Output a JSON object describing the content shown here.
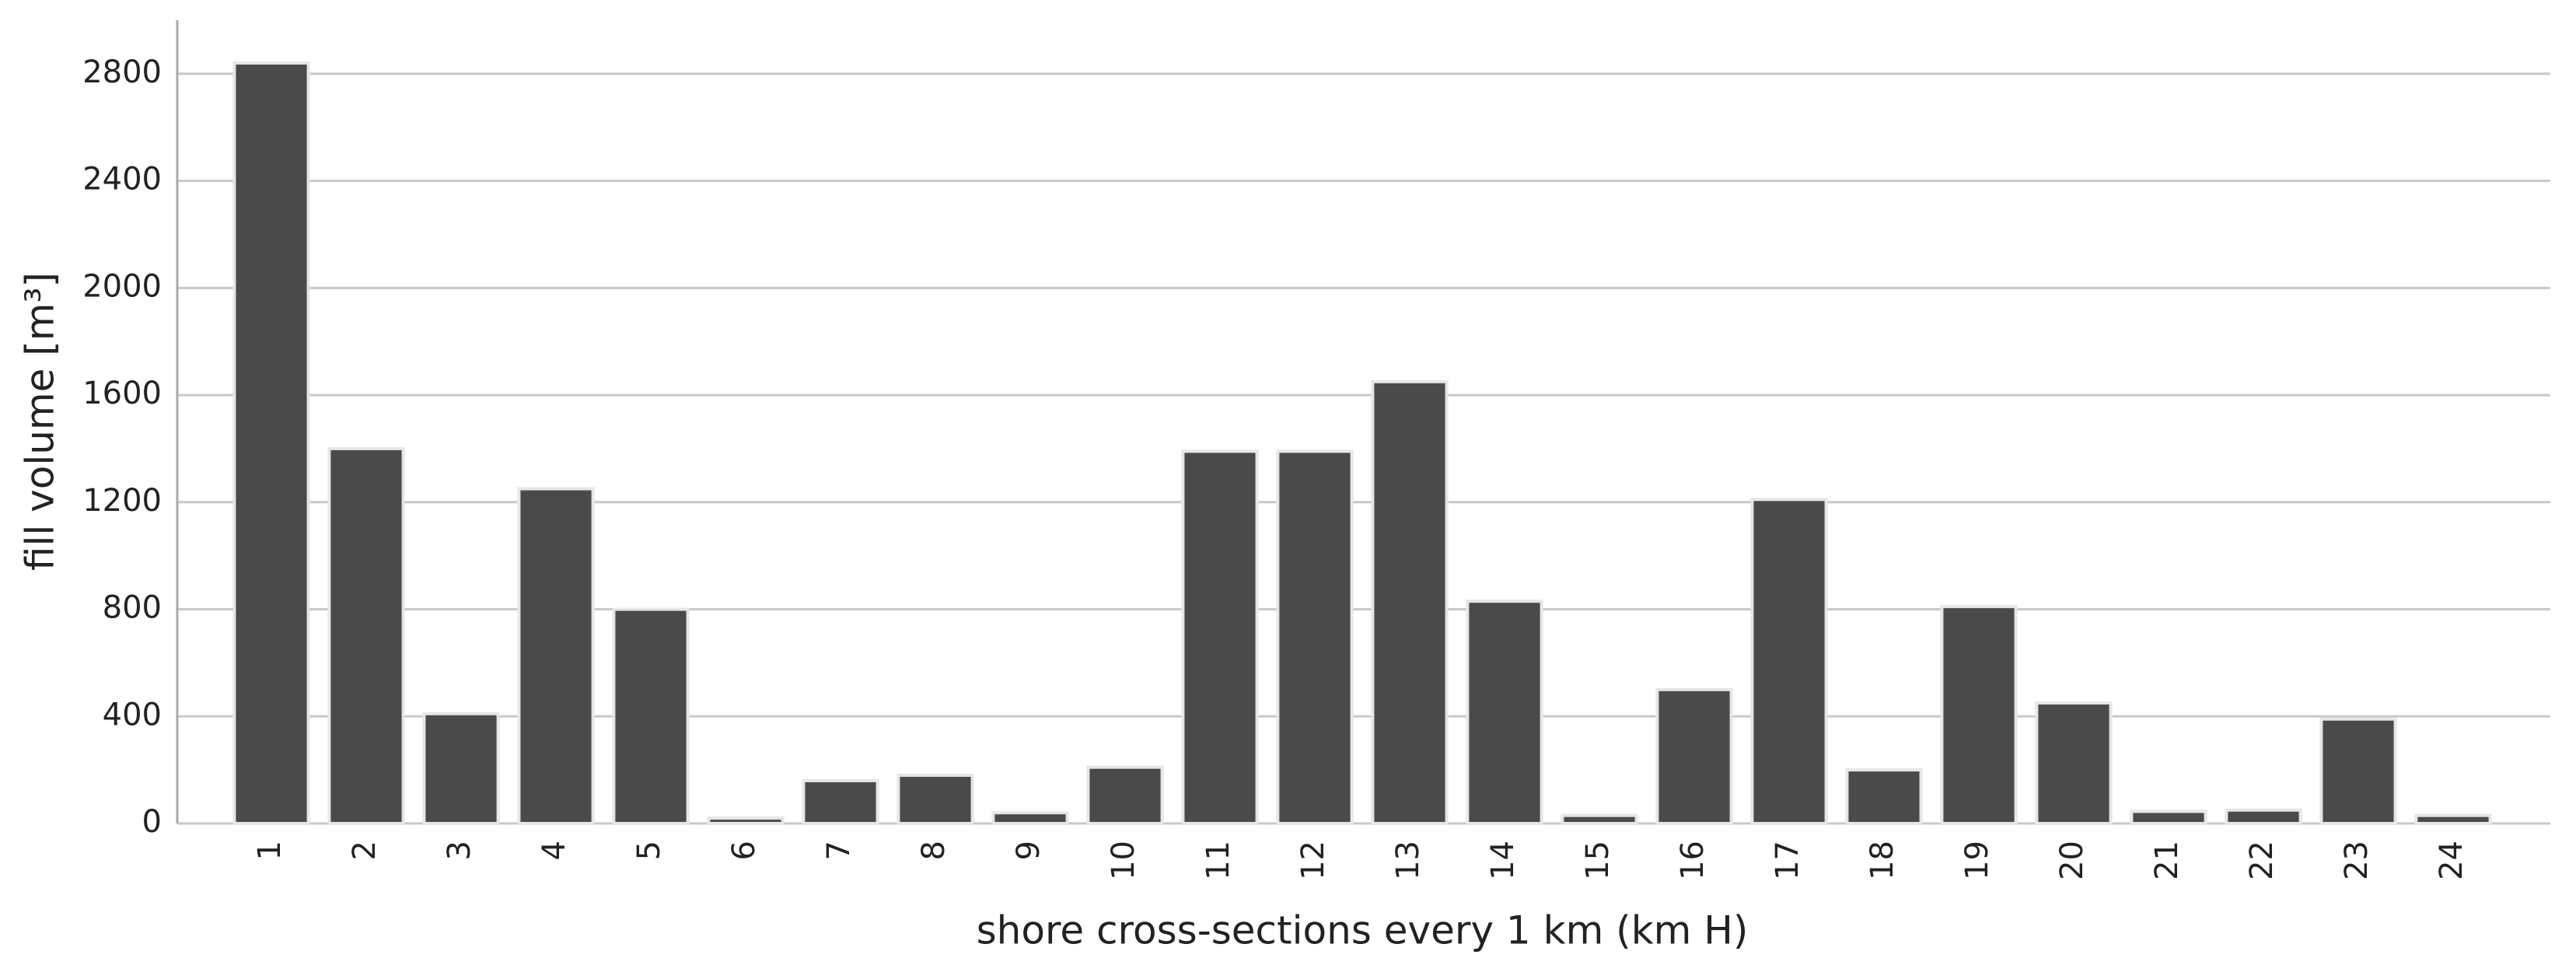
{
  "chart_data": {
    "type": "bar",
    "xlabel": "shore cross-sections every 1 km (km H)",
    "ylabel": "fill volume [m³]",
    "categories": [
      "1",
      "2",
      "3",
      "4",
      "5",
      "6",
      "7",
      "8",
      "9",
      "10",
      "11",
      "12",
      "13",
      "14",
      "15",
      "16",
      "17",
      "18",
      "19",
      "20",
      "21",
      "22",
      "23",
      "24"
    ],
    "values": [
      2840,
      1400,
      410,
      1250,
      800,
      20,
      160,
      180,
      40,
      210,
      1390,
      1390,
      1650,
      830,
      30,
      500,
      1210,
      200,
      810,
      450,
      45,
      50,
      390,
      30
    ],
    "color": "#4a4a4a",
    "ylim": [
      0,
      3000
    ],
    "yticks": [
      0,
      400,
      800,
      1200,
      1600,
      2000,
      2400,
      2800
    ],
    "grid": true
  }
}
